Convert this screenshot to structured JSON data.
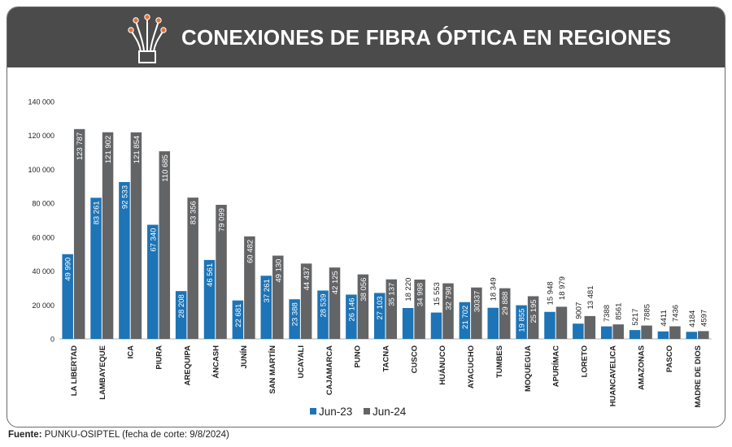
{
  "header": {
    "title": "CONEXIONES DE FIBRA ÓPTICA EN REGIONES",
    "icon": "fiber-optic-icon"
  },
  "source": {
    "label": "Fuente:",
    "text": "PUNKU-OSIPTEL (fecha de corte: 9/8/2024)"
  },
  "colors": {
    "header_bg": "#4b4b4b",
    "series_2023": "#1d74b6",
    "series_2024": "#636466",
    "icon_accent": "#e0733a"
  },
  "chart_data": {
    "type": "bar",
    "categories": [
      "LA LIBERTAD",
      "LAMBAYEQUE",
      "ICA",
      "PIURA",
      "AREQUIPA",
      "ÁNCASH",
      "JUNÍN",
      "SAN MARTÍN",
      "UCAYALI",
      "CAJAMARCA",
      "PUNO",
      "TACNA",
      "CUSCO",
      "HUÁNUCO",
      "AYACUCHO",
      "TUMBES",
      "MOQUEGUA",
      "APURÍMAC",
      "LORETO",
      "HUANCAVELICA",
      "AMAZONAS",
      "PASCO",
      "MADRE DE DIOS"
    ],
    "series": [
      {
        "name": "Jun-23",
        "values": [
          49990,
          83261,
          92533,
          67340,
          28208,
          46561,
          22681,
          37261,
          23388,
          28539,
          26146,
          27103,
          18220,
          15553,
          21702,
          18349,
          19855,
          15948,
          9007,
          7388,
          5217,
          4411,
          4184
        ],
        "labels": [
          "49 990",
          "83 261",
          "92 533",
          "67 340",
          "28 208",
          "46 561",
          "22 681",
          "37 261",
          "23 388",
          "28 539",
          "26 146",
          "27 103",
          "18 220",
          "15 553",
          "21 702",
          "18 349",
          "19 855",
          "15 948",
          "9007",
          "7388",
          "5217",
          "4411",
          "4184"
        ]
      },
      {
        "name": "Jun-24",
        "values": [
          123787,
          121902,
          121854,
          110685,
          83356,
          79099,
          60482,
          49130,
          44437,
          42125,
          38056,
          35137,
          34998,
          32798,
          30337,
          29888,
          25195,
          18979,
          13481,
          8561,
          7885,
          7436,
          4597
        ],
        "labels": [
          "123 787",
          "121 902",
          "121 854",
          "110 685",
          "83 356",
          "79 099",
          "60 482",
          "49 130",
          "44 437",
          "42 125",
          "38 056",
          "35 137",
          "34 998",
          "32 798",
          "30337",
          "29 888",
          "25 195",
          "18 979",
          "13 481",
          "8561",
          "7885",
          "7436",
          "4597"
        ]
      }
    ],
    "yticks": [
      0,
      20000,
      40000,
      60000,
      80000,
      100000,
      120000,
      140000
    ],
    "ytick_labels": [
      "0",
      "20 000",
      "40 000",
      "60 000",
      "80 000",
      "100 000",
      "120 000",
      "140 000"
    ],
    "ylim": [
      0,
      140000
    ],
    "grid": false,
    "legend_position": "bottom-center"
  }
}
